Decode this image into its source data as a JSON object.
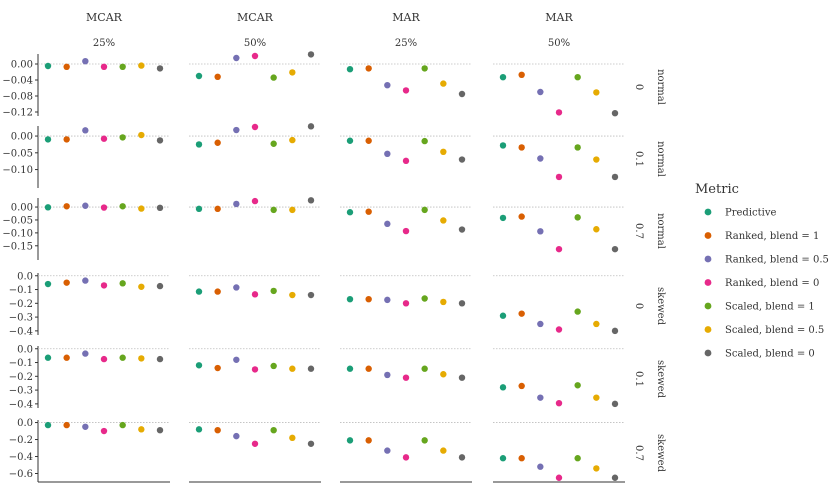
{
  "chart_data": {
    "type": "scatter",
    "column_headers": [
      {
        "missingness": "MCAR",
        "rate": "25%"
      },
      {
        "missingness": "MCAR",
        "rate": "50%"
      },
      {
        "missingness": "MAR",
        "rate": "25%"
      },
      {
        "missingness": "MAR",
        "rate": "50%"
      }
    ],
    "row_headers": [
      {
        "distribution": "normal",
        "value": "0"
      },
      {
        "distribution": "normal",
        "value": "0.1"
      },
      {
        "distribution": "normal",
        "value": "0.7"
      },
      {
        "distribution": "skewed",
        "value": "0"
      },
      {
        "distribution": "skewed",
        "value": "0.1"
      },
      {
        "distribution": "skewed",
        "value": "0.7"
      }
    ],
    "rows": [
      {
        "ylim": [
          -0.13,
          0.025
        ],
        "ticks": [
          0.0,
          -0.04,
          -0.08,
          -0.12
        ],
        "tick_labels": [
          "0.00",
          "−0.04",
          "−0.08",
          "−0.12"
        ]
      },
      {
        "ylim": [
          -0.155,
          0.03
        ],
        "ticks": [
          0.0,
          -0.05,
          -0.1
        ],
        "tick_labels": [
          "0.00",
          "−0.05",
          "−0.10"
        ]
      },
      {
        "ylim": [
          -0.205,
          0.035
        ],
        "ticks": [
          0.0,
          -0.05,
          -0.1,
          -0.15
        ],
        "tick_labels": [
          "0.00",
          "−0.05",
          "−0.10",
          "−0.15"
        ]
      },
      {
        "ylim": [
          -0.43,
          0.02
        ],
        "ticks": [
          0.0,
          -0.1,
          -0.2,
          -0.3,
          -0.4
        ],
        "tick_labels": [
          "0.0",
          "−0.1",
          "−0.2",
          "−0.3",
          "−0.4"
        ]
      },
      {
        "ylim": [
          -0.43,
          0.02
        ],
        "ticks": [
          0.0,
          -0.1,
          -0.2,
          -0.3,
          -0.4
        ],
        "tick_labels": [
          "0.0",
          "−0.1",
          "−0.2",
          "−0.3",
          "−0.4"
        ]
      },
      {
        "ylim": [
          -0.7,
          0.03
        ],
        "ticks": [
          0.0,
          -0.2,
          -0.4,
          -0.6
        ],
        "tick_labels": [
          "0.0",
          "−0.2",
          "−0.4",
          "−0.6"
        ]
      }
    ],
    "legend": {
      "title": "Metric",
      "position": "right",
      "entries": [
        {
          "name": "Predictive",
          "color": "#1b9e77"
        },
        {
          "name": "Ranked, blend = 1",
          "color": "#d95f02"
        },
        {
          "name": "Ranked, blend = 0.5",
          "color": "#7570b3"
        },
        {
          "name": "Ranked, blend = 0",
          "color": "#e7298a"
        },
        {
          "name": "Scaled, blend = 1",
          "color": "#66a61e"
        },
        {
          "name": "Scaled, blend = 0.5",
          "color": "#e6ab02"
        },
        {
          "name": "Scaled, blend = 0",
          "color": "#666666"
        }
      ]
    },
    "reference_line": 0,
    "values": [
      [
        [
          -0.005,
          -0.007,
          0.007,
          -0.007,
          -0.007,
          -0.004,
          -0.011
        ],
        [
          -0.03,
          -0.032,
          0.015,
          0.02,
          -0.034,
          -0.021,
          0.024
        ],
        [
          -0.013,
          -0.011,
          -0.053,
          -0.066,
          -0.011,
          -0.049,
          -0.075
        ],
        [
          -0.033,
          -0.027,
          -0.07,
          -0.121,
          -0.033,
          -0.071,
          -0.123
        ]
      ],
      [
        [
          -0.01,
          -0.01,
          0.017,
          -0.008,
          -0.004,
          0.003,
          -0.013
        ],
        [
          -0.025,
          -0.02,
          0.018,
          0.027,
          -0.023,
          -0.012,
          0.029
        ],
        [
          -0.014,
          -0.014,
          -0.053,
          -0.074,
          -0.015,
          -0.047,
          -0.07
        ],
        [
          -0.028,
          -0.034,
          -0.067,
          -0.122,
          -0.034,
          -0.07,
          -0.122
        ]
      ],
      [
        [
          -0.001,
          0.003,
          0.005,
          -0.002,
          0.003,
          -0.006,
          -0.003
        ],
        [
          -0.007,
          -0.007,
          0.012,
          0.023,
          -0.011,
          -0.011,
          0.026
        ],
        [
          -0.02,
          -0.018,
          -0.065,
          -0.093,
          -0.011,
          -0.052,
          -0.087
        ],
        [
          -0.042,
          -0.037,
          -0.094,
          -0.163,
          -0.04,
          -0.086,
          -0.163
        ]
      ],
      [
        [
          -0.06,
          -0.05,
          -0.035,
          -0.07,
          -0.055,
          -0.08,
          -0.075
        ],
        [
          -0.115,
          -0.115,
          -0.085,
          -0.135,
          -0.11,
          -0.14,
          -0.14
        ],
        [
          -0.17,
          -0.17,
          -0.175,
          -0.2,
          -0.165,
          -0.19,
          -0.2
        ],
        [
          -0.29,
          -0.275,
          -0.35,
          -0.39,
          -0.26,
          -0.35,
          -0.4
        ]
      ],
      [
        [
          -0.065,
          -0.065,
          -0.035,
          -0.075,
          -0.065,
          -0.07,
          -0.075
        ],
        [
          -0.12,
          -0.14,
          -0.08,
          -0.15,
          -0.125,
          -0.145,
          -0.145
        ],
        [
          -0.145,
          -0.145,
          -0.19,
          -0.21,
          -0.145,
          -0.185,
          -0.21
        ],
        [
          -0.28,
          -0.27,
          -0.355,
          -0.395,
          -0.265,
          -0.355,
          -0.4
        ]
      ],
      [
        [
          -0.03,
          -0.03,
          -0.05,
          -0.1,
          -0.03,
          -0.08,
          -0.09
        ],
        [
          -0.08,
          -0.09,
          -0.16,
          -0.25,
          -0.09,
          -0.18,
          -0.25
        ],
        [
          -0.21,
          -0.21,
          -0.33,
          -0.41,
          -0.21,
          -0.33,
          -0.41
        ],
        [
          -0.42,
          -0.42,
          -0.52,
          -0.65,
          -0.42,
          -0.54,
          -0.65
        ]
      ]
    ]
  }
}
